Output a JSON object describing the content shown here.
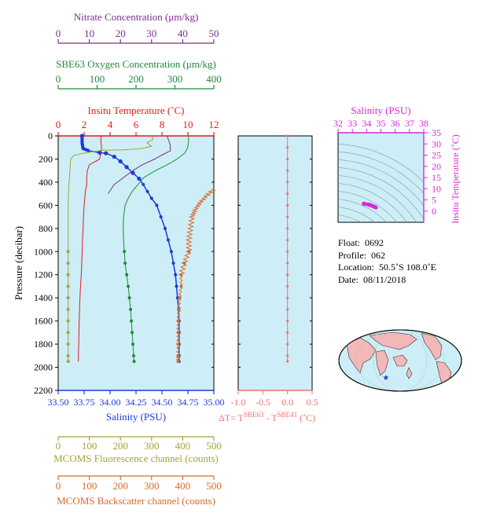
{
  "figure": {
    "colors": {
      "plot_bg": "#cdeef7",
      "nitrate": "#7b2f8e",
      "oxygen": "#1f8a3a",
      "temperature": "#e31a1c",
      "salinity": "#1a3bd9",
      "fluorescence": "#a4a23c",
      "backscatter": "#d96a2b",
      "delta_t": "#f07070",
      "ts_diagram": "#d62ad6",
      "land": "#f4b8b8"
    },
    "info": {
      "float_label": "Float:",
      "float": "0692",
      "profile_label": "Profile:",
      "profile": "062",
      "location_label": "Location:",
      "location": "50.5˚S  108.0˚E",
      "date_label": "Date:",
      "date": "08/11/2018"
    },
    "map": {
      "marker_lat": -50.5,
      "marker_lon": 108.0
    }
  },
  "chart_data": [
    {
      "type": "line",
      "panel": "main-profile",
      "y_axis": {
        "label": "Pressure (decibar)",
        "range": [
          0,
          2200
        ],
        "ticks": [
          0,
          200,
          400,
          600,
          800,
          1000,
          1200,
          1400,
          1600,
          1800,
          2000,
          2200
        ],
        "reversed": true
      },
      "axes": {
        "nitrate": {
          "label": "Nitrate Concentration (μm/kg)",
          "range": [
            0,
            50
          ],
          "ticks": [
            0,
            10,
            20,
            30,
            40,
            50
          ]
        },
        "oxygen": {
          "label": "SBE63 Oxygen Concentration (μm/kg)",
          "range": [
            0,
            400
          ],
          "ticks": [
            0,
            100,
            200,
            300,
            400
          ]
        },
        "temperature": {
          "label": "Insitu Temperature (˚C)",
          "range": [
            0,
            12
          ],
          "ticks": [
            0,
            2,
            4,
            6,
            8,
            10,
            12
          ]
        },
        "salinity": {
          "label": "Salinity (PSU)",
          "range": [
            33.5,
            35.0
          ],
          "ticks": [
            "33.50",
            "33.75",
            "34.00",
            "34.25",
            "34.50",
            "34.75",
            "35.00"
          ]
        },
        "fluorescence": {
          "label": "MCOMS Fluorescence channel (counts)",
          "range": [
            0,
            500
          ],
          "ticks": [
            0,
            100,
            200,
            300,
            400,
            500
          ]
        },
        "backscatter": {
          "label": "MCOMS Backscatter channel (counts)",
          "range": [
            0,
            500
          ],
          "ticks": [
            0,
            100,
            200,
            300,
            400,
            500
          ]
        }
      },
      "series": [
        {
          "name": "Temperature",
          "variable": "temperature",
          "style": "line",
          "points": [
            [
              3.3,
              0
            ],
            [
              3.3,
              60
            ],
            [
              3.35,
              100
            ],
            [
              3.3,
              140
            ],
            [
              3.2,
              200
            ],
            [
              2.4,
              250
            ],
            [
              2.25,
              300
            ],
            [
              2.2,
              360
            ],
            [
              2.2,
              420
            ],
            [
              2.1,
              480
            ],
            [
              2.05,
              540
            ],
            [
              2.0,
              600
            ],
            [
              1.95,
              700
            ],
            [
              1.92,
              800
            ],
            [
              1.88,
              900
            ],
            [
              1.85,
              1000
            ],
            [
              1.82,
              1100
            ],
            [
              1.78,
              1200
            ],
            [
              1.72,
              1300
            ],
            [
              1.68,
              1400
            ],
            [
              1.65,
              1500
            ],
            [
              1.62,
              1600
            ],
            [
              1.6,
              1700
            ],
            [
              1.58,
              1800
            ],
            [
              1.56,
              1900
            ],
            [
              1.55,
              1950
            ]
          ]
        },
        {
          "name": "Salinity",
          "variable": "salinity",
          "style": "line-dots",
          "points": [
            [
              33.73,
              0
            ],
            [
              33.73,
              60
            ],
            [
              33.74,
              110
            ],
            [
              33.8,
              130
            ],
            [
              33.9,
              145
            ],
            [
              33.96,
              150
            ],
            [
              34.04,
              180
            ],
            [
              34.1,
              220
            ],
            [
              34.16,
              270
            ],
            [
              34.22,
              320
            ],
            [
              34.28,
              370
            ],
            [
              34.32,
              420
            ],
            [
              34.36,
              480
            ],
            [
              34.4,
              540
            ],
            [
              34.45,
              600
            ],
            [
              34.49,
              700
            ],
            [
              34.53,
              800
            ],
            [
              34.56,
              900
            ],
            [
              34.59,
              1000
            ],
            [
              34.61,
              1100
            ],
            [
              34.63,
              1200
            ],
            [
              34.64,
              1300
            ],
            [
              34.65,
              1400
            ],
            [
              34.66,
              1500
            ],
            [
              34.665,
              1600
            ],
            [
              34.665,
              1700
            ],
            [
              34.665,
              1800
            ],
            [
              34.665,
              1900
            ],
            [
              34.665,
              1950
            ]
          ]
        },
        {
          "name": "Oxygen",
          "variable": "oxygen",
          "style": "line-then-dots",
          "points": [
            [
              335,
              0
            ],
            [
              335,
              50
            ],
            [
              333,
              100
            ],
            [
              325,
              150
            ],
            [
              305,
              200
            ],
            [
              280,
              250
            ],
            [
              250,
              300
            ],
            [
              220,
              360
            ],
            [
              205,
              420
            ],
            [
              190,
              480
            ],
            [
              180,
              540
            ],
            [
              172,
              600
            ],
            [
              168,
              700
            ],
            [
              167,
              800
            ],
            [
              168,
              900
            ],
            [
              170,
              1000
            ],
            [
              172,
              1100
            ],
            [
              176,
              1200
            ],
            [
              180,
              1300
            ],
            [
              183,
              1400
            ],
            [
              186,
              1500
            ],
            [
              188,
              1600
            ],
            [
              190,
              1700
            ],
            [
              192,
              1800
            ],
            [
              194,
              1900
            ],
            [
              195,
              1950
            ]
          ]
        },
        {
          "name": "Nitrate",
          "variable": "nitrate",
          "style": "line",
          "points": [
            [
              35,
              0
            ],
            [
              36,
              80
            ],
            [
              36,
              130
            ],
            [
              33,
              170
            ],
            [
              31,
              200
            ],
            [
              27,
              250
            ],
            [
              24,
              300
            ],
            [
              21,
              360
            ],
            [
              18,
              420
            ],
            [
              16,
              500
            ]
          ]
        },
        {
          "name": "Fluorescence",
          "variable": "fluorescence",
          "style": "line-then-dots",
          "points": [
            [
              300,
              0
            ],
            [
              305,
              30
            ],
            [
              285,
              60
            ],
            [
              300,
              90
            ],
            [
              265,
              110
            ],
            [
              210,
              120
            ],
            [
              140,
              125
            ],
            [
              80,
              150
            ],
            [
              50,
              170
            ],
            [
              40,
              200
            ],
            [
              38,
              300
            ],
            [
              35,
              400
            ],
            [
              33,
              500
            ],
            [
              32,
              600
            ],
            [
              32,
              800
            ],
            [
              32,
              1000
            ],
            [
              32,
              1100
            ],
            [
              32,
              1200
            ],
            [
              32,
              1300
            ],
            [
              32,
              1400
            ],
            [
              32,
              1500
            ],
            [
              32,
              1600
            ],
            [
              32,
              1700
            ],
            [
              32,
              1800
            ],
            [
              32,
              1900
            ],
            [
              32,
              1950
            ]
          ]
        },
        {
          "name": "Backscatter",
          "variable": "backscatter",
          "style": "noisy-then-dots",
          "points": [
            [
              500,
              460
            ],
            [
              475,
              520
            ],
            [
              455,
              580
            ],
            [
              440,
              640
            ],
            [
              430,
              700
            ],
            [
              425,
              800
            ],
            [
              420,
              900
            ],
            [
              420,
              1000
            ],
            [
              405,
              1100
            ],
            [
              395,
              1200
            ],
            [
              395,
              1300
            ],
            [
              390,
              1400
            ],
            [
              388,
              1500
            ],
            [
              385,
              1600
            ],
            [
              385,
              1700
            ],
            [
              385,
              1800
            ],
            [
              385,
              1900
            ],
            [
              385,
              1950
            ]
          ]
        }
      ]
    },
    {
      "type": "scatter",
      "panel": "delta-t",
      "xlabel": "ΔT= T",
      "xlabel_sup1": "SBE63",
      "xlabel_mid": " - T",
      "xlabel_sup2": "SBE41",
      "xlabel_unit": " (˚C)",
      "x_range": [
        -1.0,
        0.5
      ],
      "x_ticks": [
        "-1.0",
        "-0.5",
        "0.0",
        "0.5"
      ],
      "y_range": [
        0,
        2200
      ],
      "points": [
        [
          0.0,
          0
        ],
        [
          0.0,
          100
        ],
        [
          0.0,
          200
        ],
        [
          0.0,
          300
        ],
        [
          0.0,
          400
        ],
        [
          0.0,
          500
        ],
        [
          0.0,
          600
        ],
        [
          0.0,
          700
        ],
        [
          0.0,
          800
        ],
        [
          0.0,
          900
        ],
        [
          0.0,
          1000
        ],
        [
          0.0,
          1100
        ],
        [
          0.0,
          1200
        ],
        [
          0.0,
          1300
        ],
        [
          0.0,
          1400
        ],
        [
          0.0,
          1500
        ],
        [
          0.0,
          1600
        ],
        [
          0.0,
          1700
        ],
        [
          0.0,
          1800
        ],
        [
          0.0,
          1900
        ],
        [
          0.0,
          1950
        ]
      ]
    },
    {
      "type": "scatter",
      "panel": "ts-diagram",
      "xlabel": "Salinity (PSU)",
      "x_range": [
        32,
        38
      ],
      "x_ticks": [
        32,
        33,
        34,
        35,
        36,
        37,
        38
      ],
      "ylabel": "Insitu Temperature (˚C)",
      "y_range": [
        -5,
        35
      ],
      "y_ticks": [
        0,
        5,
        10,
        15,
        20,
        25,
        30,
        35
      ],
      "points": [
        [
          33.8,
          3.3
        ],
        [
          34.1,
          3.0
        ],
        [
          34.3,
          2.6
        ],
        [
          34.45,
          2.2
        ],
        [
          34.55,
          1.9
        ],
        [
          34.65,
          1.6
        ],
        [
          34.2,
          2.8
        ],
        [
          33.9,
          3.2
        ]
      ]
    }
  ]
}
